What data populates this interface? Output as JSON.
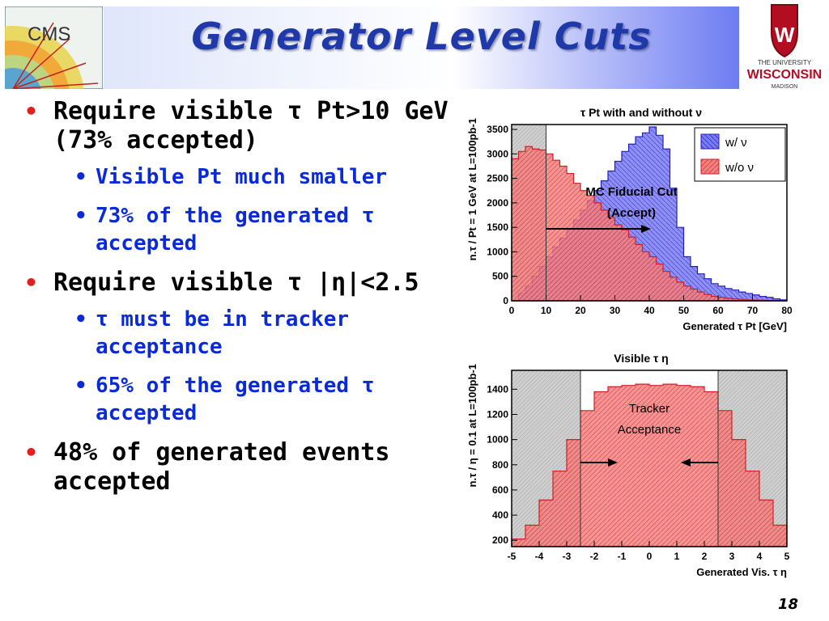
{
  "header": {
    "title": "Generator Level Cuts",
    "cms_logo_text": "CMS",
    "uw_lines": [
      "THE UNIVERSITY",
      "WISCONSIN",
      "MADISON"
    ]
  },
  "bullets": [
    {
      "level": 1,
      "text": "Require visible τ Pt>10 GeV (73% accepted)"
    },
    {
      "level": 2,
      "text": "Visible Pt much smaller"
    },
    {
      "level": 2,
      "text": "73% of the generated τ accepted"
    },
    {
      "level": 1,
      "text": "Require visible τ |η|<2.5"
    },
    {
      "level": 2,
      "text": "τ must be in tracker acceptance"
    },
    {
      "level": 2,
      "text": "65% of the generated τ accepted"
    },
    {
      "level": 1,
      "text": "48% of generated events accepted"
    }
  ],
  "page_number": "18",
  "colors": {
    "title": "#1f3aa8",
    "bullet_level1": "#000000",
    "bullet_level2": "#0a2ad8",
    "w_nu": "#3b3bf0",
    "wo_nu": "#f24c4c"
  },
  "chart_data": [
    {
      "type": "area",
      "title": "τ Pt with and without ν",
      "xlabel": "Generated τ Pt [GeV]",
      "ylabel": "n.τ / Pt = 1 GeV at L=100pb-1",
      "xlim": [
        0,
        80
      ],
      "ylim": [
        0,
        3600
      ],
      "xticks": [
        0,
        10,
        20,
        30,
        40,
        50,
        60,
        70,
        80
      ],
      "yticks": [
        0,
        500,
        1000,
        1500,
        2000,
        2500,
        3000,
        3500
      ],
      "annotation_lines": [
        "MC Fiducial Cut",
        "(Accept)"
      ],
      "shaded_region": [
        0,
        10
      ],
      "legend_position": "top-right",
      "x": [
        0,
        2,
        4,
        6,
        8,
        10,
        12,
        14,
        16,
        18,
        20,
        22,
        24,
        26,
        28,
        30,
        32,
        34,
        36,
        38,
        40,
        42,
        44,
        46,
        48,
        50,
        52,
        54,
        56,
        58,
        60,
        62,
        64,
        66,
        68,
        70,
        72,
        74,
        76,
        78,
        80
      ],
      "series": [
        {
          "name": "w/ ν",
          "values": [
            0,
            150,
            300,
            500,
            700,
            900,
            1100,
            1280,
            1480,
            1650,
            1850,
            2050,
            2250,
            2450,
            2650,
            2850,
            3050,
            3200,
            3350,
            3430,
            3550,
            3380,
            3100,
            2300,
            1500,
            900,
            700,
            550,
            450,
            350,
            300,
            250,
            220,
            180,
            150,
            120,
            90,
            70,
            40,
            20,
            10
          ]
        },
        {
          "name": "w/o ν",
          "values": [
            2900,
            3050,
            3150,
            3100,
            3080,
            3000,
            2870,
            2750,
            2600,
            2400,
            2250,
            2150,
            2000,
            1850,
            1700,
            1550,
            1450,
            1300,
            1150,
            1000,
            900,
            750,
            600,
            480,
            380,
            300,
            240,
            180,
            130,
            90,
            70,
            50,
            40,
            30,
            20,
            15,
            10,
            8,
            5,
            3,
            0
          ]
        }
      ]
    },
    {
      "type": "area",
      "title": "Visible τ η",
      "xlabel": "Generated Vis. τ η",
      "ylabel": "n.τ / η = 0.1 at L=100pb-1",
      "xlim": [
        -5,
        5
      ],
      "ylim": [
        150,
        1550
      ],
      "xticks": [
        -5,
        -4,
        -3,
        -2,
        -1,
        0,
        1,
        2,
        3,
        4,
        5
      ],
      "yticks": [
        200,
        400,
        600,
        800,
        1000,
        1200,
        1400
      ],
      "annotation_lines": [
        "Tracker",
        "Acceptance"
      ],
      "shaded_regions": [
        [
          -5,
          -2.5
        ],
        [
          2.5,
          5
        ]
      ],
      "x": [
        -5,
        -4.5,
        -4,
        -3.5,
        -3,
        -2.5,
        -2,
        -1.5,
        -1,
        -0.5,
        0,
        0.5,
        1,
        1.5,
        2,
        2.5,
        3,
        3.5,
        4,
        4.5,
        5
      ],
      "series": [
        {
          "values": [
            210,
            320,
            520,
            750,
            1000,
            1230,
            1380,
            1420,
            1430,
            1440,
            1430,
            1440,
            1430,
            1420,
            1380,
            1230,
            1000,
            750,
            520,
            320,
            210
          ]
        }
      ]
    }
  ]
}
